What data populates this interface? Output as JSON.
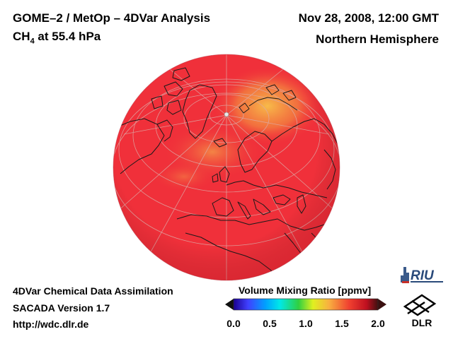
{
  "header": {
    "title": "GOME–2 / MetOp – 4DVar Analysis",
    "species": "CH",
    "species_sub": "4",
    "level": " at 55.4 hPa",
    "datetime": "Nov 28, 2008, 12:00 GMT",
    "region": "Northern Hemisphere"
  },
  "footer": {
    "line1": "4DVar Chemical Data Assimilation",
    "line2": "SACADA Version 1.7",
    "line3": "http://wdc.dlr.de"
  },
  "colorbar": {
    "title": "Volume Mixing Ratio [ppmv]",
    "ticks": [
      "0.0",
      "0.5",
      "1.0",
      "1.5",
      "2.0"
    ],
    "min": 0.0,
    "max": 2.0
  },
  "logos": {
    "riu": "RIU",
    "dlr": "DLR"
  },
  "colors": {
    "field_main": "#f0303a",
    "field_high": "#f6b040",
    "field_mid": "#f07240",
    "coast": "#1a1a1a",
    "grid": "#d8a0a0"
  }
}
